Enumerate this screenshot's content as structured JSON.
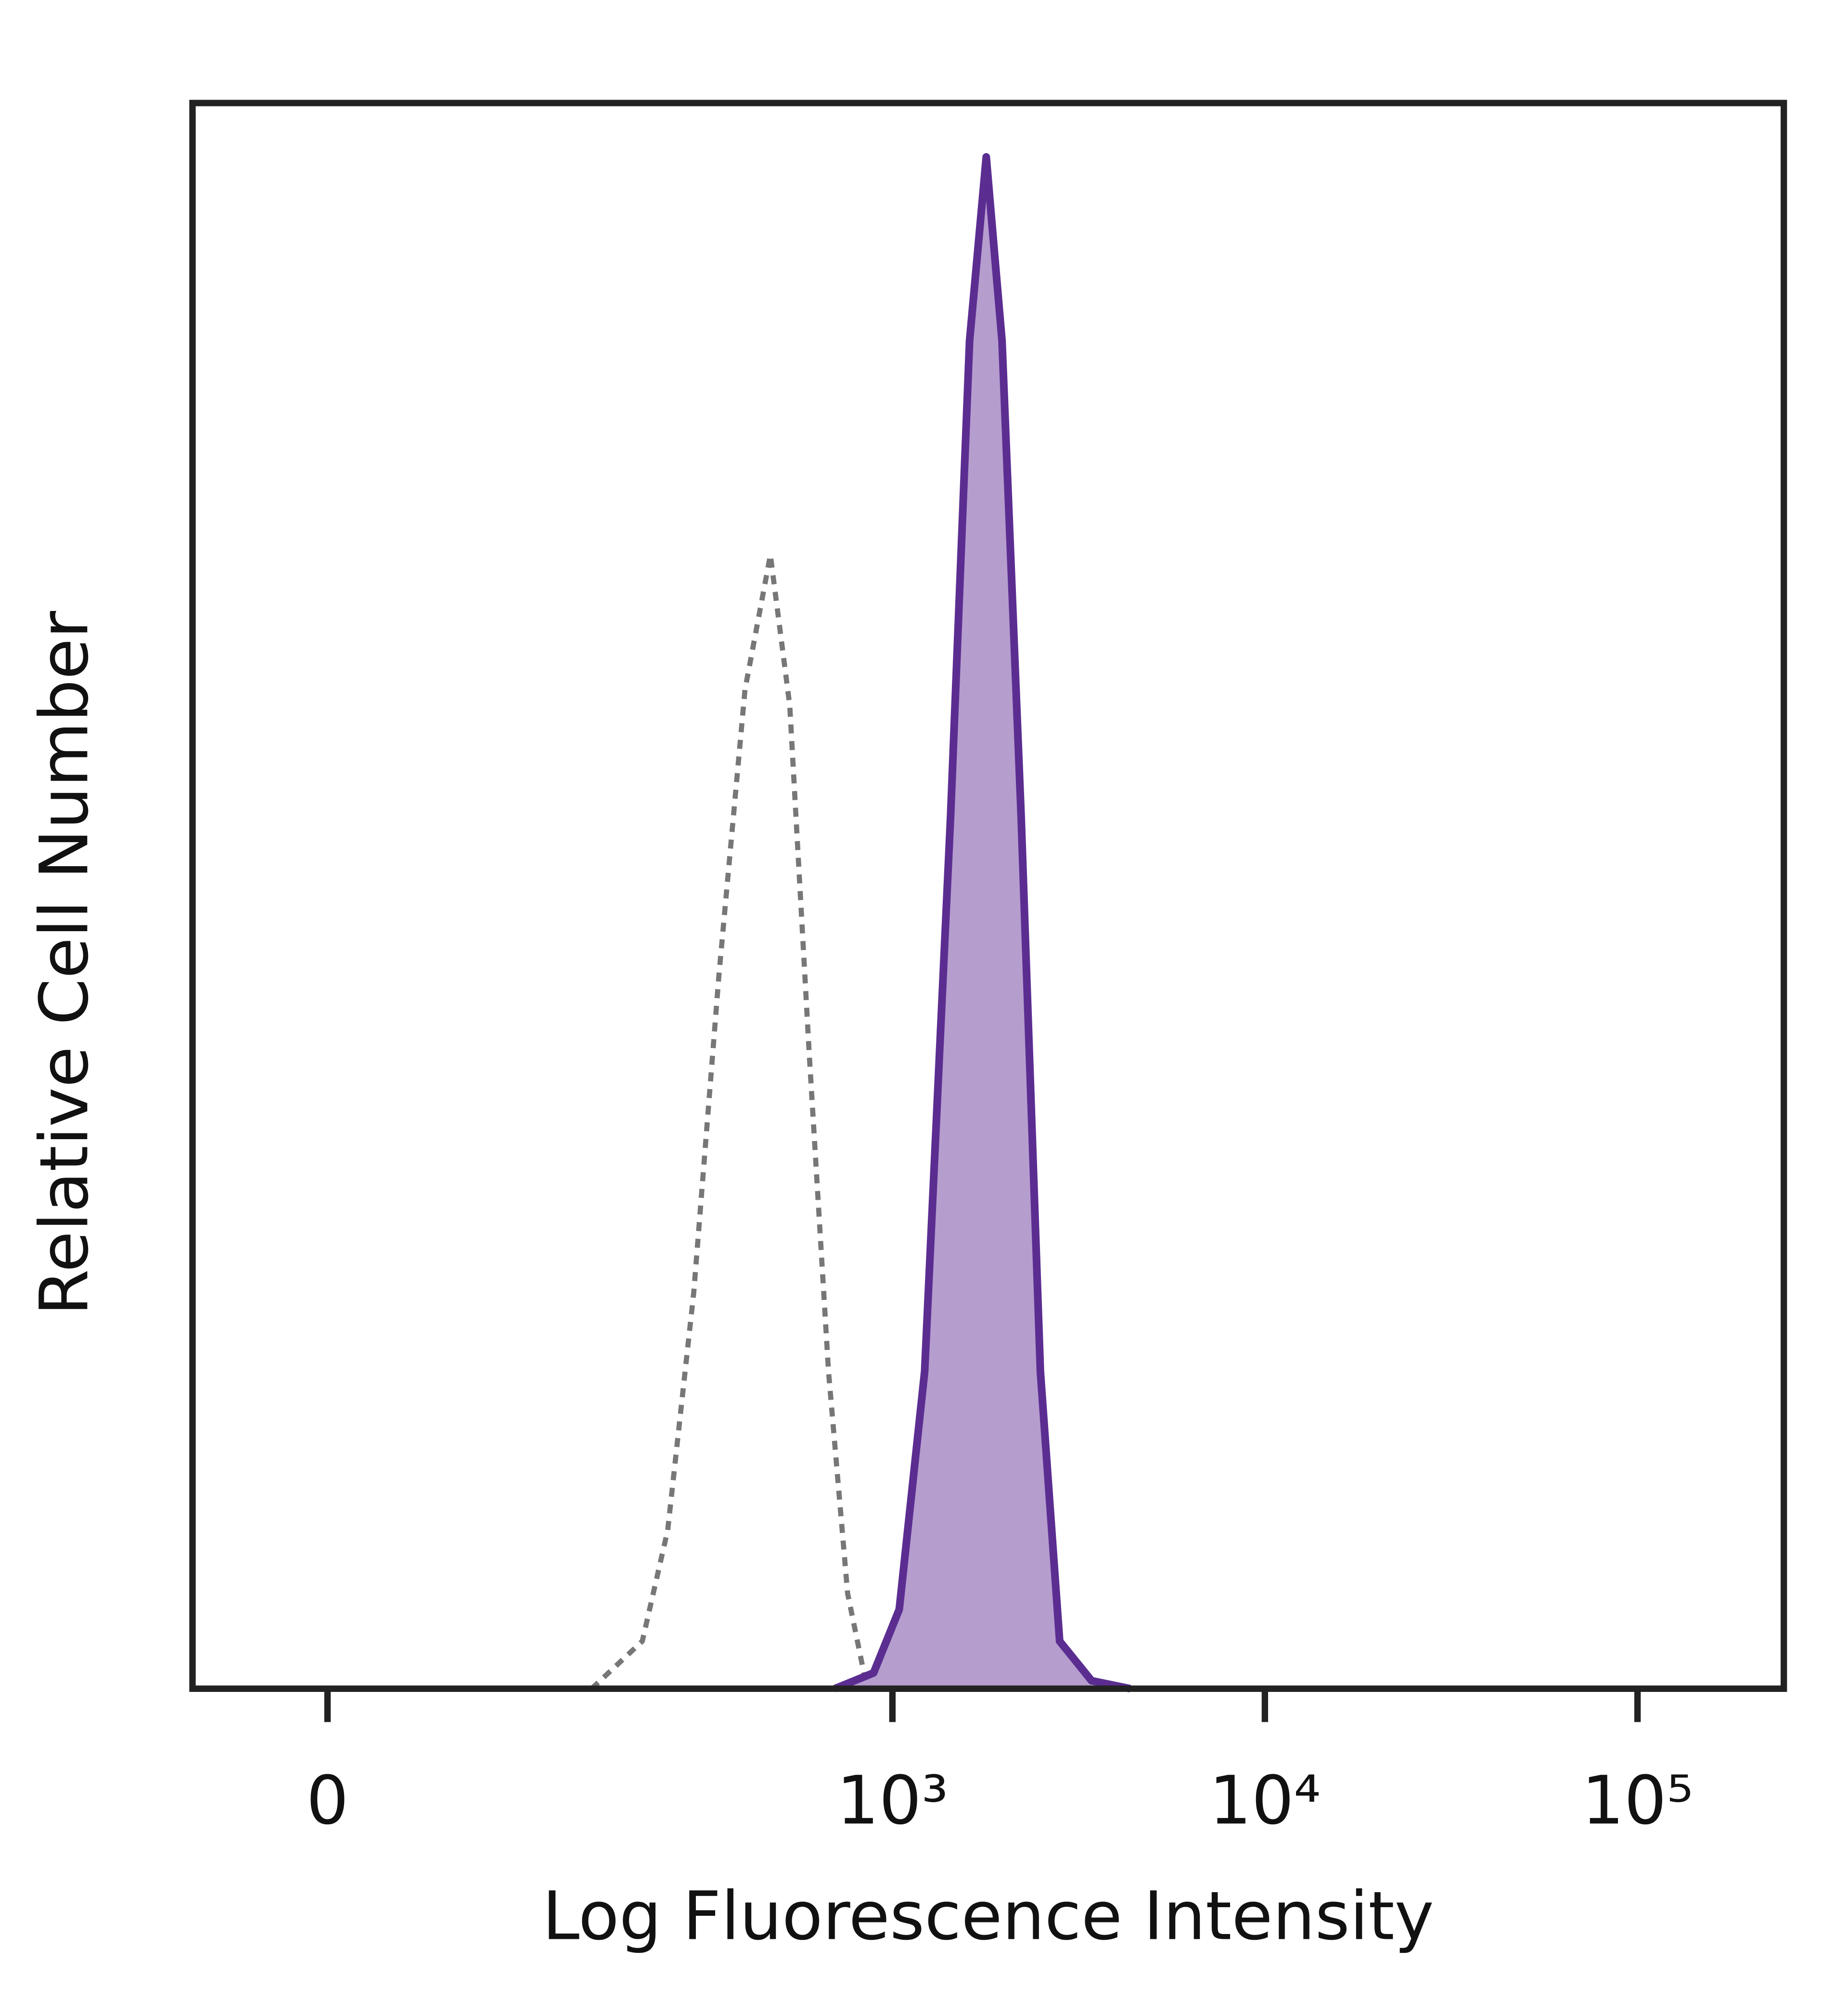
{
  "chart_data": {
    "type": "histogram-overlay",
    "x_label": "Log Fluorescence Intensity",
    "y_label": "Relative Cell Number",
    "xscale": "asinh",
    "xscale_width": 61,
    "xlim": [
      -57,
      247000
    ],
    "xticks": [
      {
        "value": 0,
        "label": "0"
      },
      {
        "value": 1000,
        "label": "10³"
      },
      {
        "value": 10000,
        "label": "10⁴"
      },
      {
        "value": 100000,
        "label": "10⁵"
      }
    ],
    "ylim": [
      0,
      100
    ],
    "series": [
      {
        "color": "#777777",
        "style": "dotted",
        "fill": null,
        "x": [
          150,
          209,
          246,
          290,
          340,
          400,
          469,
          529,
          597,
          673,
          758,
          855
        ],
        "values": [
          0,
          3,
          10,
          25,
          45,
          63,
          71.5,
          62,
          40,
          20,
          6,
          0
        ]
      },
      {
        "color": "#5b2d91",
        "style": "solid",
        "fill": "#b59dce",
        "x": [
          700,
          890,
          1043,
          1221,
          1433,
          1612,
          1786,
          1970,
          2217,
          2497,
          2812,
          3428,
          4350
        ],
        "values": [
          0,
          1,
          5,
          20,
          55,
          85,
          96.6,
          85,
          55,
          20,
          3,
          0.5,
          0
        ]
      }
    ]
  }
}
